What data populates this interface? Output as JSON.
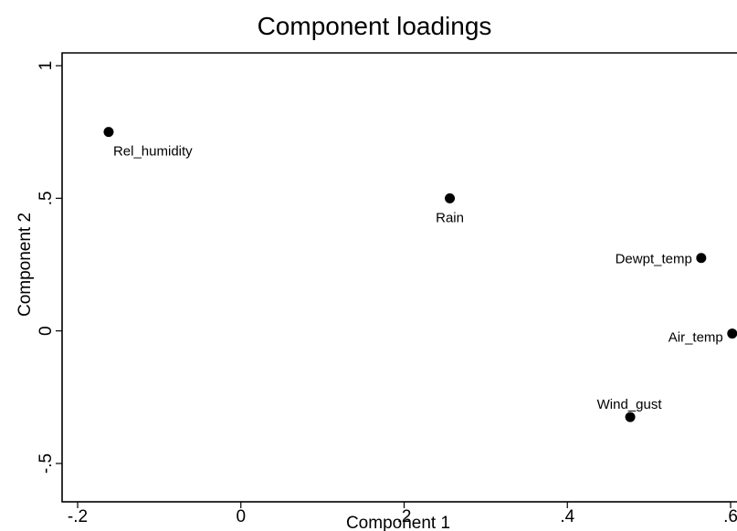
{
  "chart_data": {
    "type": "scatter",
    "title": "Component loadings",
    "xlabel": "Component 1",
    "ylabel": "Component 2",
    "xlim": [
      -0.2,
      0.6
    ],
    "ylim": [
      -0.5,
      1.0
    ],
    "xticks": [
      -0.2,
      0,
      0.2,
      0.4,
      0.6
    ],
    "xtick_labels": [
      "-.2",
      "0",
      ".2",
      ".4",
      ".6"
    ],
    "yticks": [
      -0.5,
      0,
      0.5,
      1
    ],
    "ytick_labels": [
      "-.5",
      "0",
      ".5",
      "1"
    ],
    "grid": false,
    "legend": "none",
    "marker_color": "#000000",
    "points": [
      {
        "label": "Rel_humidity",
        "x": -0.162,
        "y": 0.75
      },
      {
        "label": "Rain",
        "x": 0.256,
        "y": 0.5
      },
      {
        "label": "Dewpt_temp",
        "x": 0.564,
        "y": 0.275
      },
      {
        "label": "Air_temp",
        "x": 0.602,
        "y": -0.01
      },
      {
        "label": "Wind_gust",
        "x": 0.477,
        "y": -0.325
      }
    ]
  }
}
